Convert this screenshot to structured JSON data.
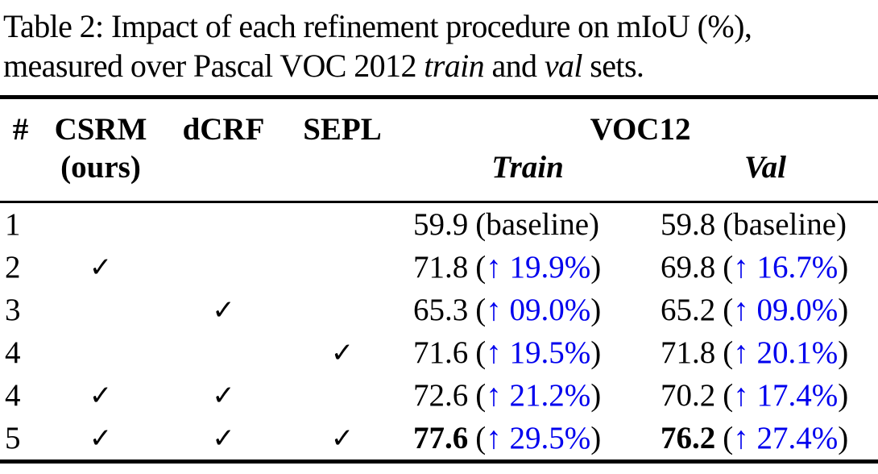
{
  "caption": {
    "line1": "Table 2: Impact of each refinement procedure on mIoU (%),",
    "line2": {
      "pre": "measured over Pascal VOC 2012 ",
      "train_word": "train",
      "mid": " and ",
      "val_word": "val",
      "post": " sets."
    }
  },
  "colors": {
    "text": "#000000",
    "delta_blue": "#0000EE"
  },
  "table": {
    "headers": {
      "num": "#",
      "csrm": "CSRM",
      "csrm_sub": "(ours)",
      "dcrf": "dCRF",
      "sepl": "SEPL",
      "group": "VOC12",
      "train": "Train",
      "val": "Val"
    },
    "parens": {
      "open": "(",
      "close": ")"
    },
    "rows": [
      {
        "num": "1",
        "csrm": "",
        "dcrf": "",
        "sepl": "",
        "train": {
          "score": "59.9",
          "score_style": "normal",
          "delta": "baseline",
          "delta_style": "plain"
        },
        "val": {
          "score": "59.8",
          "score_style": "normal",
          "delta": "baseline",
          "delta_style": "plain"
        }
      },
      {
        "num": "2",
        "csrm": "✓",
        "dcrf": "",
        "sepl": "",
        "train": {
          "score": "71.8",
          "score_style": "normal",
          "delta": "↑ 19.9%",
          "delta_style": "blue"
        },
        "val": {
          "score": "69.8",
          "score_style": "normal",
          "delta": "↑ 16.7%",
          "delta_style": "blue"
        }
      },
      {
        "num": "3",
        "csrm": "",
        "dcrf": "✓",
        "sepl": "",
        "train": {
          "score": "65.3",
          "score_style": "normal",
          "delta": "↑ 09.0%",
          "delta_style": "blue"
        },
        "val": {
          "score": "65.2",
          "score_style": "normal",
          "delta": "↑ 09.0%",
          "delta_style": "blue"
        }
      },
      {
        "num": "4",
        "csrm": "",
        "dcrf": "",
        "sepl": "✓",
        "train": {
          "score": "71.6",
          "score_style": "normal",
          "delta": "↑ 19.5%",
          "delta_style": "blue"
        },
        "val": {
          "score": "71.8",
          "score_style": "normal",
          "delta": "↑ 20.1%",
          "delta_style": "blue"
        }
      },
      {
        "num": "4",
        "csrm": "✓",
        "dcrf": "✓",
        "sepl": "",
        "train": {
          "score": "72.6",
          "score_style": "normal",
          "delta": "↑ 21.2%",
          "delta_style": "blue"
        },
        "val": {
          "score": "70.2",
          "score_style": "normal",
          "delta": "↑ 17.4%",
          "delta_style": "blue"
        }
      },
      {
        "num": "5",
        "csrm": "✓",
        "dcrf": "✓",
        "sepl": "✓",
        "train": {
          "score": "77.6",
          "score_style": "bold",
          "delta": "↑ 29.5%",
          "delta_style": "blue"
        },
        "val": {
          "score": "76.2",
          "score_style": "bold",
          "delta": "↑ 27.4%",
          "delta_style": "blue"
        }
      }
    ]
  }
}
